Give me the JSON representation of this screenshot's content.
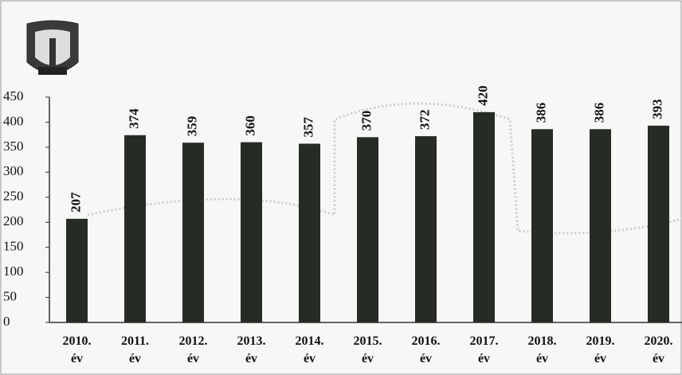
{
  "chart_data": {
    "type": "bar",
    "categories": [
      "2010.\név",
      "2011.\név",
      "2012.\név",
      "2013.\név",
      "2014.\név",
      "2015.\név",
      "2016.\név",
      "2017.\név",
      "2018.\név",
      "2019.\név",
      "2020.\név"
    ],
    "values": [
      207,
      374,
      359,
      360,
      357,
      370,
      372,
      420,
      386,
      386,
      393
    ],
    "color": "#262b26",
    "ylim": [
      0,
      450
    ],
    "yticks": [
      0,
      50,
      100,
      150,
      200,
      250,
      300,
      350,
      400,
      450
    ],
    "grid": false
  }
}
